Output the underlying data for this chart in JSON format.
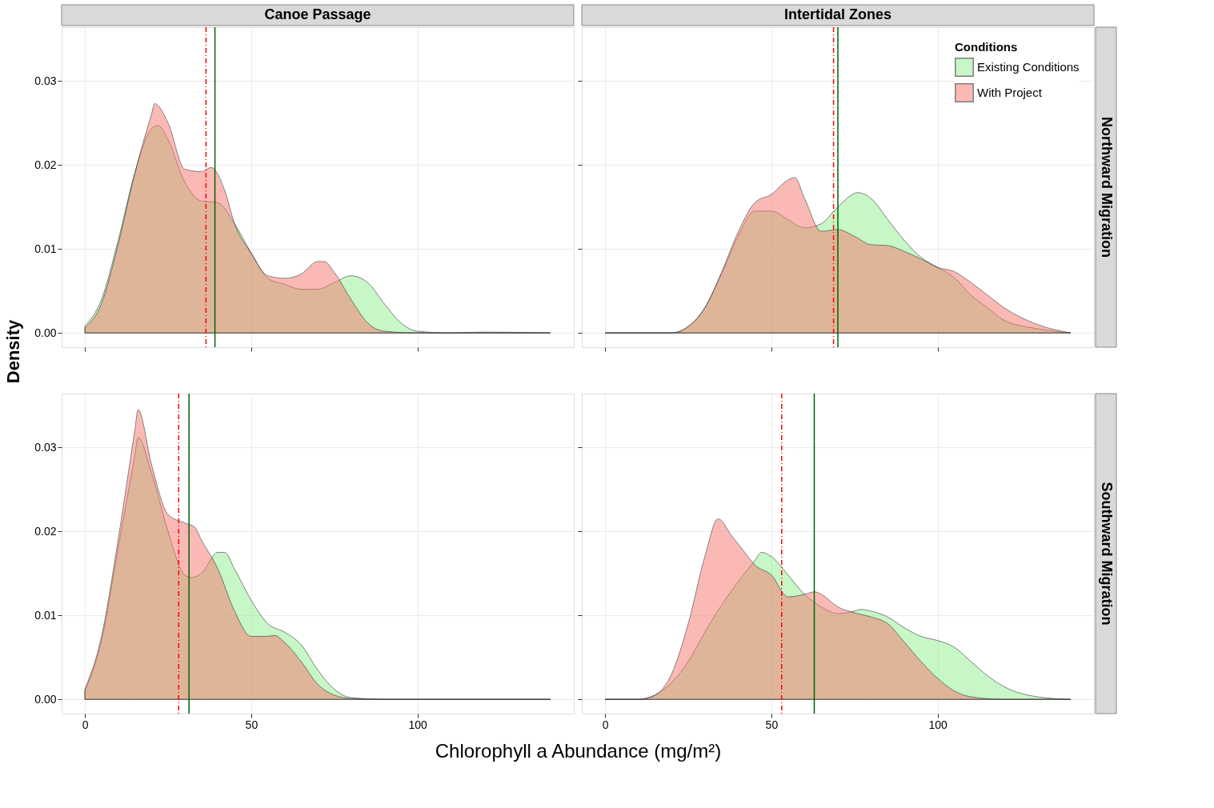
{
  "chart_data": [
    {
      "type": "area",
      "title": "Canoe Passage",
      "ylabel": "Density",
      "xlim": [
        -7,
        147
      ],
      "ylim": [
        -0.0017,
        0.0364
      ],
      "xticks": [
        0,
        50,
        100
      ],
      "yticks": [
        {
          "value": 0,
          "label": "0.00"
        },
        {
          "value": 0.01,
          "label": "0.01"
        },
        {
          "value": 0.02,
          "label": "0.02"
        },
        {
          "value": 0.03,
          "label": "0.03"
        }
      ],
      "grid": true,
      "tick_labels": "y",
      "ref_lines": [
        {
          "axis": "x",
          "value": 36.4,
          "color": "#ff0000",
          "line_style": "dashed"
        },
        {
          "axis": "x",
          "value": 39.1,
          "color": "#006400",
          "line_style": "solid"
        }
      ],
      "series": [
        {
          "color": "#90ee90",
          "x": [
            0,
            5,
            10,
            15,
            20,
            22,
            25,
            30,
            35,
            40,
            45,
            50,
            55,
            60,
            65,
            70,
            75,
            80,
            85,
            90,
            95,
            100,
            110,
            120,
            140
          ],
          "values": [
            0.0008,
            0.004,
            0.011,
            0.019,
            0.0243,
            0.0247,
            0.023,
            0.018,
            0.0157,
            0.0155,
            0.013,
            0.0095,
            0.0065,
            0.0058,
            0.0052,
            0.0052,
            0.006,
            0.0068,
            0.006,
            0.0035,
            0.0012,
            0.0002,
            0,
            0.0001,
            0
          ]
        },
        {
          "color": "#f8766d",
          "x": [
            0,
            5,
            10,
            15,
            20,
            21,
            25,
            30,
            35,
            38,
            42,
            45,
            50,
            55,
            60,
            65,
            70,
            72,
            75,
            80,
            85,
            90,
            100,
            140
          ],
          "values": [
            0.0006,
            0.0035,
            0.0105,
            0.019,
            0.026,
            0.0273,
            0.025,
            0.0195,
            0.0192,
            0.0197,
            0.017,
            0.013,
            0.0095,
            0.0068,
            0.0065,
            0.007,
            0.0085,
            0.0085,
            0.0072,
            0.004,
            0.0012,
            0.0002,
            0,
            0
          ]
        }
      ]
    },
    {
      "type": "area",
      "title": "Intertidal Zones",
      "y2label": "Northward Migration",
      "legend_title": "Conditions",
      "legend": "top right",
      "xlim": [
        -7,
        147
      ],
      "ylim": [
        -0.0017,
        0.0364
      ],
      "xticks": [
        0,
        50,
        100
      ],
      "yticks": [
        0,
        0.01,
        0.02,
        0.03
      ],
      "grid": true,
      "tick_labels": false,
      "ref_lines": [
        {
          "axis": "x",
          "value": 68.7,
          "color": "#ff0000",
          "line_style": "dashed"
        },
        {
          "axis": "x",
          "value": 70.0,
          "color": "#006400",
          "line_style": "solid"
        }
      ],
      "series": [
        {
          "name": "Existing Conditions",
          "color": "#90ee90",
          "x": [
            0,
            20,
            25,
            30,
            35,
            40,
            45,
            50,
            55,
            60,
            65,
            70,
            76,
            80,
            85,
            90,
            95,
            100,
            105,
            110,
            115,
            120,
            130,
            140
          ],
          "values": [
            0,
            0,
            0.0007,
            0.003,
            0.007,
            0.0115,
            0.0145,
            0.0145,
            0.0135,
            0.0125,
            0.013,
            0.015,
            0.0167,
            0.016,
            0.0135,
            0.011,
            0.009,
            0.0078,
            0.0066,
            0.0045,
            0.003,
            0.0015,
            0.0005,
            0
          ]
        },
        {
          "name": "With Project",
          "color": "#f8766d",
          "x": [
            0,
            20,
            25,
            30,
            35,
            40,
            45,
            50,
            55,
            57,
            60,
            65,
            70,
            75,
            80,
            85,
            90,
            95,
            100,
            105,
            110,
            115,
            120,
            130,
            140
          ],
          "values": [
            0,
            0,
            0.0008,
            0.003,
            0.0072,
            0.012,
            0.0155,
            0.0165,
            0.0182,
            0.0185,
            0.016,
            0.0121,
            0.0123,
            0.0115,
            0.0105,
            0.0104,
            0.0097,
            0.0088,
            0.0078,
            0.0073,
            0.006,
            0.0045,
            0.003,
            0.001,
            0
          ]
        }
      ]
    },
    {
      "type": "area",
      "xlabel": "Chlorophyll a Abundance (mg/m²)",
      "xlim": [
        -7,
        147
      ],
      "ylim": [
        -0.0017,
        0.0364
      ],
      "xticks": [
        0,
        50,
        100
      ],
      "yticks": [
        {
          "value": 0,
          "label": "0.00"
        },
        {
          "value": 0.01,
          "label": "0.01"
        },
        {
          "value": 0.02,
          "label": "0.02"
        },
        {
          "value": 0.03,
          "label": "0.03"
        }
      ],
      "grid": true,
      "ref_lines": [
        {
          "axis": "x",
          "value": 28.2,
          "color": "#ff0000",
          "line_style": "dashed"
        },
        {
          "axis": "x",
          "value": 31.3,
          "color": "#006400",
          "line_style": "solid"
        }
      ],
      "series": [
        {
          "color": "#90ee90",
          "x": [
            0,
            5,
            10,
            15,
            16,
            20,
            25,
            30,
            32,
            35,
            40,
            42,
            45,
            50,
            55,
            60,
            65,
            70,
            75,
            80,
            90,
            140
          ],
          "values": [
            0.001,
            0.007,
            0.018,
            0.029,
            0.0312,
            0.027,
            0.02,
            0.0148,
            0.0145,
            0.015,
            0.0175,
            0.0175,
            0.0155,
            0.0118,
            0.009,
            0.008,
            0.0065,
            0.0035,
            0.0012,
            0.0002,
            0,
            0
          ]
        },
        {
          "color": "#f8766d",
          "x": [
            0,
            5,
            10,
            15,
            16,
            20,
            25,
            30,
            33,
            35,
            40,
            45,
            50,
            55,
            57,
            60,
            65,
            70,
            75,
            80,
            90,
            140
          ],
          "values": [
            0.0012,
            0.0075,
            0.019,
            0.032,
            0.0345,
            0.028,
            0.022,
            0.021,
            0.0205,
            0.019,
            0.0155,
            0.0105,
            0.0075,
            0.0075,
            0.0076,
            0.0068,
            0.0045,
            0.0018,
            0.0005,
            0.0001,
            0,
            0
          ]
        }
      ]
    },
    {
      "type": "area",
      "y2label": "Southward Migration",
      "xlim": [
        -7,
        147
      ],
      "ylim": [
        -0.0017,
        0.0364
      ],
      "xticks": [
        0,
        50,
        100
      ],
      "yticks": [
        0,
        0.01,
        0.02,
        0.03
      ],
      "grid": true,
      "tick_labels": "x",
      "ref_lines": [
        {
          "axis": "x",
          "value": 53.1,
          "color": "#ff0000",
          "line_style": "dashed"
        },
        {
          "axis": "x",
          "value": 62.9,
          "color": "#006400",
          "line_style": "solid"
        }
      ],
      "series": [
        {
          "color": "#90ee90",
          "x": [
            0,
            10,
            15,
            20,
            25,
            30,
            35,
            40,
            45,
            47,
            50,
            55,
            60,
            65,
            70,
            75,
            77,
            80,
            85,
            90,
            95,
            100,
            105,
            110,
            115,
            120,
            130,
            140
          ],
          "values": [
            0,
            0,
            0.0005,
            0.002,
            0.0045,
            0.008,
            0.0112,
            0.014,
            0.0165,
            0.0175,
            0.017,
            0.0148,
            0.0125,
            0.011,
            0.0102,
            0.0105,
            0.0107,
            0.0105,
            0.0098,
            0.0085,
            0.0075,
            0.007,
            0.0062,
            0.0045,
            0.0028,
            0.0015,
            0.0003,
            0
          ]
        },
        {
          "color": "#f8766d",
          "x": [
            0,
            10,
            15,
            20,
            25,
            30,
            34,
            38,
            42,
            45,
            50,
            55,
            60,
            63,
            65,
            70,
            75,
            80,
            85,
            90,
            95,
            100,
            105,
            110,
            120,
            140
          ],
          "values": [
            0,
            0,
            0.0005,
            0.003,
            0.009,
            0.017,
            0.0215,
            0.0195,
            0.0175,
            0.016,
            0.0148,
            0.0122,
            0.0125,
            0.0128,
            0.0125,
            0.011,
            0.0103,
            0.0098,
            0.009,
            0.0068,
            0.0045,
            0.0025,
            0.001,
            0.0003,
            0,
            0
          ]
        }
      ]
    }
  ]
}
